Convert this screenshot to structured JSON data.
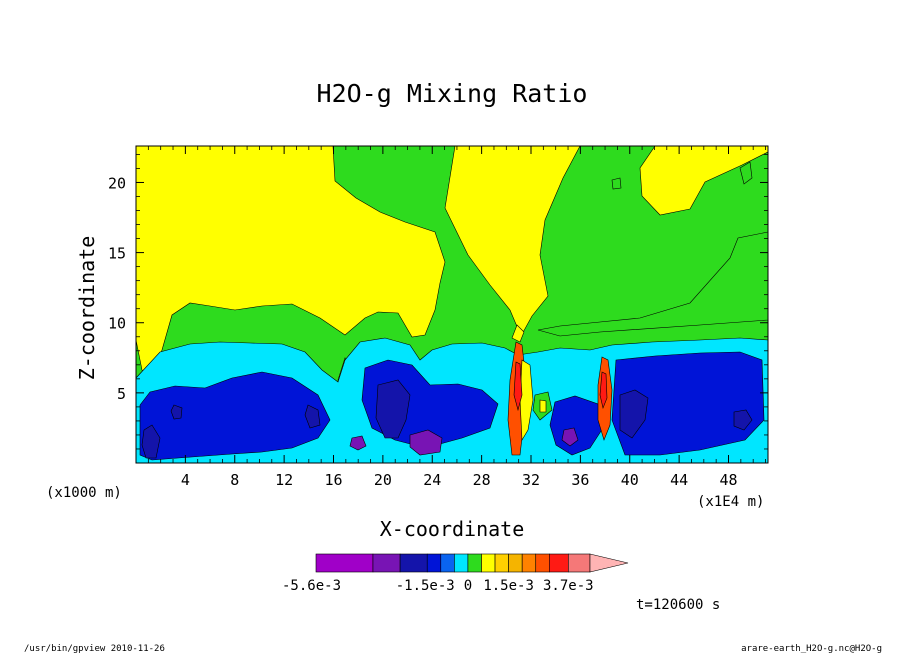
{
  "chart_data": {
    "type": "heatmap",
    "title": "H2O-g Mixing Ratio",
    "xlabel": "X-coordinate",
    "ylabel": "Z-coordinate",
    "x_units": "(x1E4 m)",
    "y_units": "(x1000 m)",
    "xlim": [
      0,
      51.2
    ],
    "ylim": [
      0,
      22.6
    ],
    "x_ticks": [
      4,
      8,
      12,
      16,
      20,
      24,
      28,
      32,
      36,
      40,
      44,
      48
    ],
    "y_ticks": [
      5,
      10,
      15,
      20
    ],
    "time_label": "t=120600 s",
    "colorbar": {
      "labels": [
        {
          "text": "-5.6e-3",
          "value": -0.0056
        },
        {
          "text": "-1.5e-3",
          "value": -0.0015
        },
        {
          "text": "0",
          "value": 0
        },
        {
          "text": "1.5e-3",
          "value": 0.0015
        },
        {
          "text": "3.7e-3",
          "value": 0.0037
        }
      ],
      "levels": [
        {
          "lo": -0.0056,
          "hi": -0.0035,
          "color": "#a000c8"
        },
        {
          "lo": -0.0035,
          "hi": -0.0025,
          "color": "#7814b4"
        },
        {
          "lo": -0.0025,
          "hi": -0.0015,
          "color": "#1414aa"
        },
        {
          "lo": -0.0015,
          "hi": -0.001,
          "color": "#0014d7"
        },
        {
          "lo": -0.001,
          "hi": -0.0005,
          "color": "#0a64f0"
        },
        {
          "lo": -0.0005,
          "hi": 0,
          "color": "#00e6ff"
        },
        {
          "lo": 0,
          "hi": 0.0005,
          "color": "#2edb1e"
        },
        {
          "lo": 0.0005,
          "hi": 0.001,
          "color": "#ffff00"
        },
        {
          "lo": 0.001,
          "hi": 0.0015,
          "color": "#ffd000"
        },
        {
          "lo": 0.0015,
          "hi": 0.002,
          "color": "#f5b400"
        },
        {
          "lo": 0.002,
          "hi": 0.0025,
          "color": "#ff8200"
        },
        {
          "lo": 0.0025,
          "hi": 0.003,
          "color": "#ff5000"
        },
        {
          "lo": 0.003,
          "hi": 0.0037,
          "color": "#ff1a14"
        },
        {
          "lo": 0.0037,
          "hi": 0.0045,
          "color": "#f57878"
        }
      ],
      "overflow_color": "#ffb4b4"
    },
    "fields": {
      "yellow_upper": {
        "color": "#ffff00"
      },
      "green_band": {
        "color": "#2edb1e"
      },
      "cyan_band": {
        "color": "#00e6ff"
      },
      "blue_core": {
        "color": "#0014d7"
      },
      "navy_core": {
        "color": "#1414aa"
      },
      "purple_core": {
        "color": "#7814b4"
      },
      "convective_core": {
        "color": "#ff5000"
      }
    }
  },
  "footer": {
    "left": "/usr/bin/gpview  2010-11-26",
    "right": "arare-earth_H2O-g.nc@H2O-g"
  }
}
